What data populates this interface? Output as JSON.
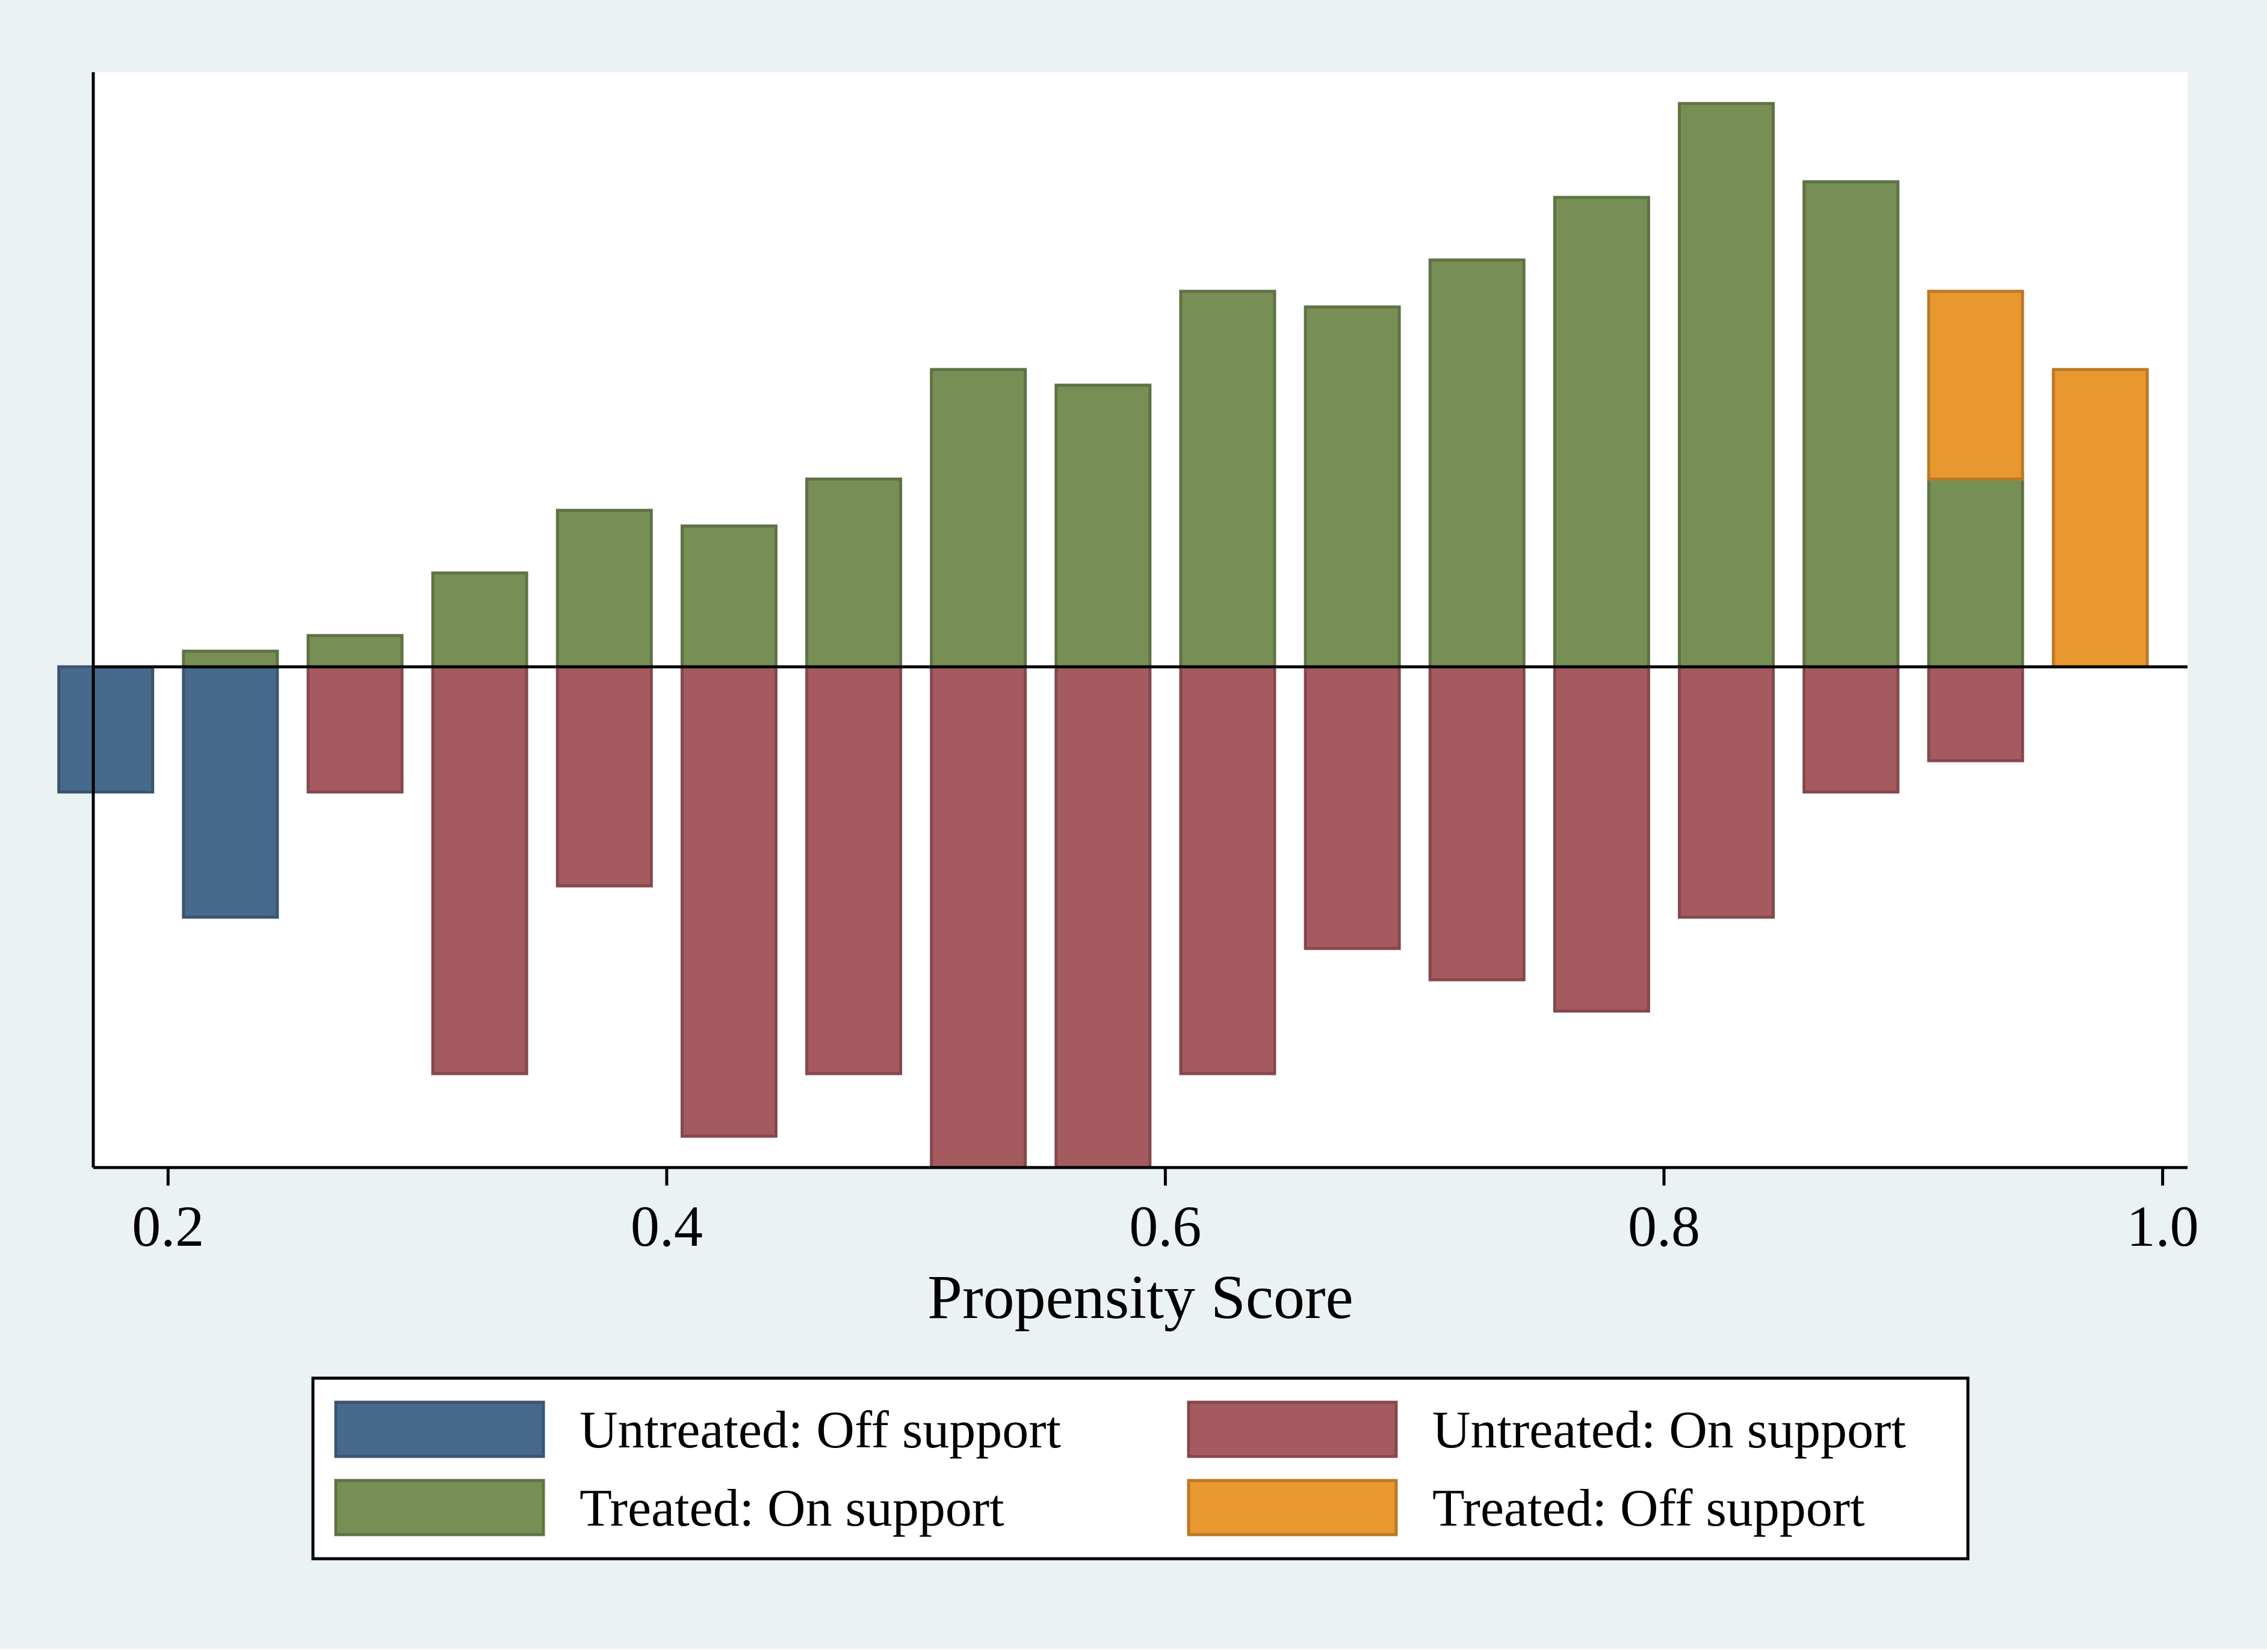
{
  "colors": {
    "outer_background": "#eaf2f3",
    "plot_background": "#ffffff",
    "untreated_off_support": "#476a8c",
    "untreated_on_support": "#a55a60",
    "treated_on_support": "#778f55",
    "treated_off_support": "#e9972f"
  },
  "chart_data": {
    "type": "bar",
    "subtype": "mirrored-histogram",
    "title": "",
    "xlabel": "Propensity Score",
    "ylabel": "",
    "xlim": [
      0.17,
      1.01
    ],
    "ylim": [
      -8,
      9.5
    ],
    "xticks": [
      0.2,
      0.4,
      0.6,
      0.8,
      1.0
    ],
    "xtick_labels": [
      "0.2",
      "0.4",
      "0.6",
      "0.8",
      "1.0"
    ],
    "y_axis_labels_shown": false,
    "bin_width": 0.05,
    "bin_centers": [
      0.175,
      0.225,
      0.275,
      0.325,
      0.375,
      0.425,
      0.475,
      0.525,
      0.575,
      0.625,
      0.675,
      0.725,
      0.775,
      0.825,
      0.875,
      0.925,
      0.975
    ],
    "series": [
      {
        "name": "Untreated: Off support",
        "color_key": "untreated_off_support",
        "direction": "down",
        "values": [
          2,
          4,
          0,
          0,
          0,
          0,
          0,
          0,
          0,
          0,
          0,
          0,
          0,
          0,
          0,
          0,
          0
        ]
      },
      {
        "name": "Untreated: On support",
        "color_key": "untreated_on_support",
        "direction": "down",
        "values": [
          0,
          0,
          2,
          6.5,
          3.5,
          7.5,
          6.5,
          8,
          8,
          6.5,
          4.5,
          5,
          5.5,
          4,
          2,
          1.5,
          0
        ]
      },
      {
        "name": "Treated: On support",
        "color_key": "treated_on_support",
        "direction": "up",
        "values": [
          0,
          0.25,
          0.5,
          1.5,
          2.5,
          2.25,
          3,
          4.75,
          4.5,
          6,
          5.75,
          6.5,
          7.5,
          9,
          7.75,
          3,
          0
        ]
      },
      {
        "name": "Treated: Off support",
        "color_key": "treated_off_support",
        "direction": "up",
        "stack_on": "Treated: On support",
        "values": [
          0,
          0,
          0,
          0,
          0,
          0,
          0,
          0,
          0,
          0,
          0,
          0,
          0,
          0,
          0,
          3,
          4.75
        ]
      }
    ],
    "legend": {
      "placement": "bottom",
      "columns": 2,
      "entries": [
        "Untreated: Off support",
        "Untreated: On support",
        "Treated: On support",
        "Treated: Off support"
      ]
    },
    "grid": false
  }
}
